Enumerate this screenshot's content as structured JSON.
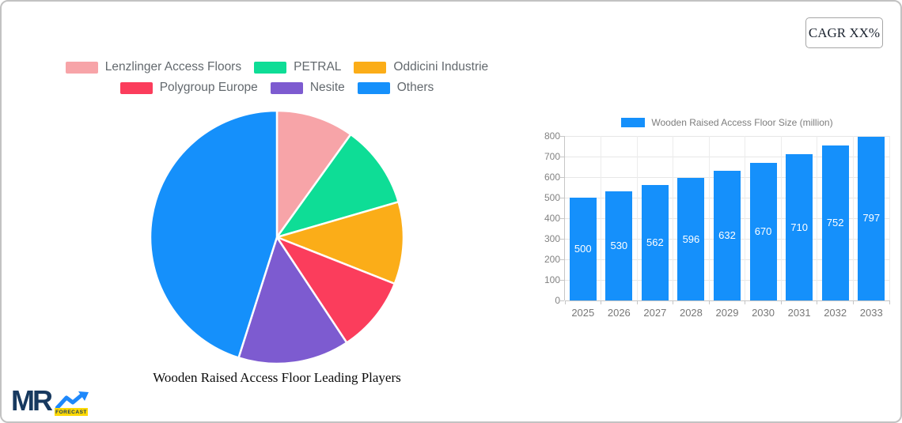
{
  "cagr_label": "CAGR XX%",
  "colors": {
    "accent_blue": "#1590fb",
    "pink": "#f7a4a8",
    "green": "#0edd96",
    "orange": "#fbad18",
    "red": "#fb3d5c",
    "purple": "#7d5bd0",
    "legend_text": "#63696e",
    "axis_text": "#828282",
    "grid_line": "#e7e7e7"
  },
  "pie_legend": {
    "row1": [
      {
        "label": "Lenzlinger Access Floors",
        "color": "#f7a4a8"
      },
      {
        "label": "PETRAL",
        "color": "#0edd96"
      },
      {
        "label": "Oddicini Industrie",
        "color": "#fbad18"
      }
    ],
    "row2": [
      {
        "label": "Polygroup Europe",
        "color": "#fb3d5c"
      },
      {
        "label": "Nesite",
        "color": "#7d5bd0"
      },
      {
        "label": "Others",
        "color": "#1590fb"
      }
    ]
  },
  "chart_data": [
    {
      "type": "pie",
      "title": "Wooden Raised Access Floor Leading Players",
      "labels": [
        "Lenzlinger Access Floors",
        "PETRAL",
        "Oddicini Industrie",
        "Polygroup Europe",
        "Nesite",
        "Others"
      ],
      "values_percent": [
        9.9,
        10.6,
        10.5,
        9.7,
        14.2,
        45.1
      ],
      "colors": [
        "#f7a4a8",
        "#0edd96",
        "#fbad18",
        "#fb3d5c",
        "#7d5bd0",
        "#1590fb"
      ],
      "start_angle_deg": 0,
      "direction": "clockwise",
      "legend_position": "top",
      "slice_border_color": "#ffffff"
    },
    {
      "type": "bar",
      "legend_label": "Wooden Raised Access Floor Size (million)",
      "categories": [
        "2025",
        "2026",
        "2027",
        "2028",
        "2029",
        "2030",
        "2031",
        "2032",
        "2033"
      ],
      "values": [
        500,
        530,
        562,
        596,
        632,
        670,
        710,
        752,
        797
      ],
      "bar_color": "#1590fb",
      "ylim": [
        0,
        800
      ],
      "ytick_step": 100,
      "grid": true,
      "value_labels": "inside-center-white"
    }
  ],
  "logo": {
    "text": "MR",
    "badge_label": "FORECAST",
    "text_color": "#17395f",
    "badge_bg": "#ffd903",
    "arrow_color": "#1e88fb"
  }
}
